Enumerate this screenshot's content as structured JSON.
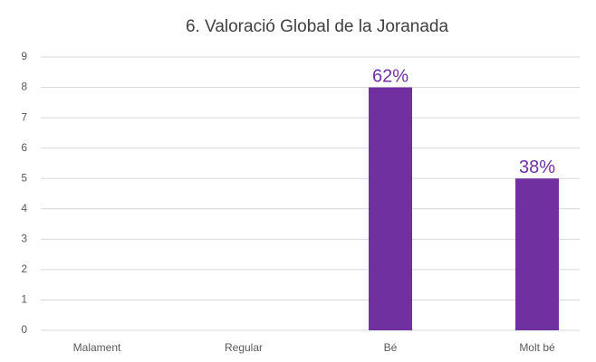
{
  "chart_data": {
    "type": "bar",
    "title": "6. Valoració Global de la Joranada",
    "categories": [
      "Malament",
      "Regular",
      "Bé",
      "Molt bé"
    ],
    "values": [
      0,
      0,
      8,
      5
    ],
    "data_labels": [
      null,
      null,
      "62%",
      "38%"
    ],
    "color": "#7030a0",
    "ylim": [
      0,
      9
    ],
    "yticks": [
      0,
      1,
      2,
      3,
      4,
      5,
      6,
      7,
      8,
      9
    ],
    "grid": true
  }
}
